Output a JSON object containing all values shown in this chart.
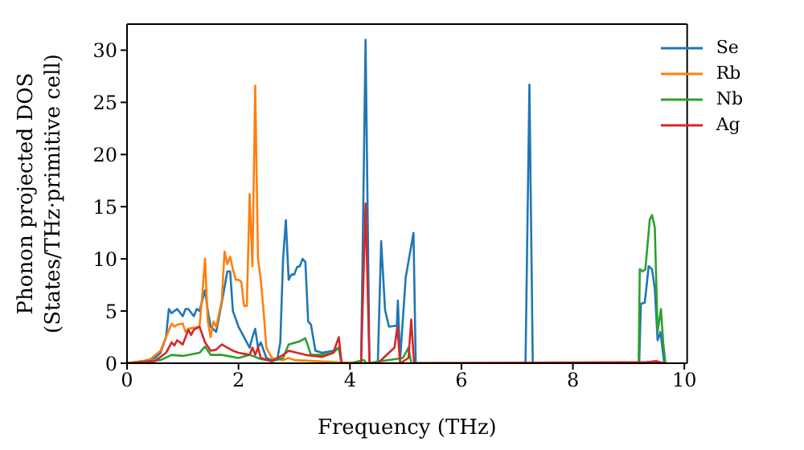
{
  "chart_data": {
    "type": "line",
    "xlabel": "Frequency (THz)",
    "ylabel": "Phonon projected DOS\n(States/THz·primitive cell)",
    "xlim": [
      0,
      10.05
    ],
    "ylim": [
      0,
      32.5
    ],
    "xticks": [
      0,
      2,
      4,
      6,
      8,
      10
    ],
    "yticks": [
      0,
      5,
      10,
      15,
      20,
      25,
      30
    ],
    "legend": "top right",
    "marker": "none",
    "line_style": "solid",
    "series": [
      {
        "name": "Se",
        "color": "#1f77b4",
        "x": [
          0,
          0.3,
          0.5,
          0.6,
          0.7,
          0.75,
          0.8,
          0.85,
          0.9,
          1.0,
          1.05,
          1.1,
          1.2,
          1.25,
          1.3,
          1.4,
          1.45,
          1.5,
          1.6,
          1.7,
          1.8,
          1.85,
          1.9,
          2.0,
          2.1,
          2.2,
          2.25,
          2.3,
          2.35,
          2.4,
          2.5,
          2.6,
          2.7,
          2.75,
          2.8,
          2.85,
          2.9,
          2.95,
          3.0,
          3.05,
          3.1,
          3.15,
          3.2,
          3.25,
          3.3,
          3.38,
          3.5,
          3.7,
          3.8,
          3.85,
          4.2,
          4.28,
          4.35,
          4.5,
          4.56,
          4.63,
          4.7,
          4.84,
          4.86,
          4.9,
          5.0,
          5.14,
          5.18,
          7.15,
          7.22,
          7.28,
          9.19,
          9.22,
          9.29,
          9.36,
          9.42,
          9.47,
          9.52,
          9.57,
          9.64
        ],
        "values": [
          0,
          0.2,
          0.5,
          1,
          2.5,
          5.2,
          4.8,
          5,
          5.2,
          4.5,
          5.2,
          5.2,
          4.5,
          5.2,
          5,
          7,
          5,
          3.5,
          3,
          5.8,
          8.8,
          8.8,
          5,
          3.5,
          2.5,
          1.5,
          2.5,
          3.3,
          1.5,
          2,
          0.5,
          0.3,
          0.5,
          2,
          10,
          13.7,
          8,
          8.5,
          8.5,
          9.2,
          9.3,
          10,
          9.7,
          4,
          3.7,
          1.2,
          1,
          1.2,
          1.5,
          0,
          0,
          31,
          0,
          0,
          11.7,
          5.1,
          3.5,
          3.6,
          6,
          0.3,
          8.2,
          12.5,
          0,
          0,
          26.7,
          0,
          0,
          5.7,
          5.8,
          9.3,
          9,
          7.1,
          2.2,
          3,
          0
        ]
      },
      {
        "name": "Rb",
        "color": "#ff7f0e",
        "x": [
          0,
          0.4,
          0.6,
          0.7,
          0.8,
          0.85,
          0.9,
          1.0,
          1.05,
          1.1,
          1.2,
          1.3,
          1.35,
          1.4,
          1.45,
          1.5,
          1.55,
          1.6,
          1.7,
          1.75,
          1.8,
          1.85,
          1.9,
          1.95,
          2.0,
          2.05,
          2.1,
          2.15,
          2.2,
          2.25,
          2.3,
          2.35,
          2.4,
          2.45,
          2.5,
          2.6,
          2.8,
          2.9,
          3.0,
          3.8,
          4.3,
          9.64
        ],
        "values": [
          0,
          0.3,
          1.2,
          2.5,
          3.8,
          3.5,
          3.7,
          3.8,
          3,
          3.3,
          3.4,
          3.5,
          6.5,
          10,
          4,
          2.5,
          4,
          3.5,
          6,
          10.7,
          9.5,
          10.2,
          9,
          8,
          8,
          7.8,
          5.5,
          5.5,
          16.2,
          9.3,
          26.6,
          10,
          8,
          5,
          1.5,
          0.5,
          0.3,
          0.5,
          0.3,
          0.1,
          0,
          0
        ]
      },
      {
        "name": "Nb",
        "color": "#2ca02c",
        "x": [
          0,
          0.6,
          0.8,
          1.0,
          1.3,
          1.4,
          1.5,
          1.7,
          2.0,
          2.2,
          2.4,
          2.6,
          2.8,
          2.9,
          3.1,
          3.2,
          3.3,
          3.5,
          3.7,
          3.8,
          3.85,
          4.0,
          4.25,
          4.3,
          4.95,
          5.05,
          5.1,
          9.18,
          9.2,
          9.25,
          9.3,
          9.38,
          9.42,
          9.47,
          9.52,
          9.58,
          9.62,
          9.66
        ],
        "values": [
          0,
          0.3,
          0.8,
          0.7,
          1,
          1.6,
          0.8,
          0.8,
          0.5,
          0.8,
          0.4,
          0.2,
          0.5,
          1.8,
          2.1,
          2.4,
          0.8,
          0.8,
          1,
          1.5,
          0,
          0,
          0.3,
          0,
          0.5,
          1.5,
          0,
          0,
          9,
          8.8,
          9,
          13.8,
          14.2,
          13,
          3,
          5.2,
          2,
          0
        ]
      },
      {
        "name": "Ag",
        "color": "#d62728",
        "x": [
          0,
          0.5,
          0.7,
          0.8,
          0.85,
          0.9,
          1.0,
          1.05,
          1.1,
          1.15,
          1.2,
          1.3,
          1.4,
          1.5,
          1.6,
          1.7,
          1.8,
          1.9,
          2.0,
          2.2,
          2.25,
          2.3,
          2.35,
          2.4,
          2.6,
          2.8,
          2.9,
          3.2,
          3.5,
          3.7,
          3.8,
          3.85,
          4.2,
          4.28,
          4.35,
          4.5,
          4.6,
          4.8,
          4.85,
          4.9,
          5.05,
          5.1,
          5.15,
          9.3,
          9.5,
          9.64
        ],
        "values": [
          0,
          0.2,
          1,
          2,
          1.7,
          2.2,
          1.8,
          2.5,
          3.2,
          2.7,
          3.2,
          3.5,
          2,
          1.2,
          1.3,
          1.8,
          1.5,
          1.2,
          1,
          0.8,
          1.5,
          0.8,
          1.5,
          0.5,
          0.2,
          0.8,
          1.2,
          0.8,
          0.6,
          1,
          2.5,
          0,
          0,
          15.3,
          0,
          0,
          0.5,
          1.5,
          3.5,
          0,
          0.5,
          4.2,
          0,
          0.1,
          0.2,
          0
        ]
      }
    ]
  }
}
